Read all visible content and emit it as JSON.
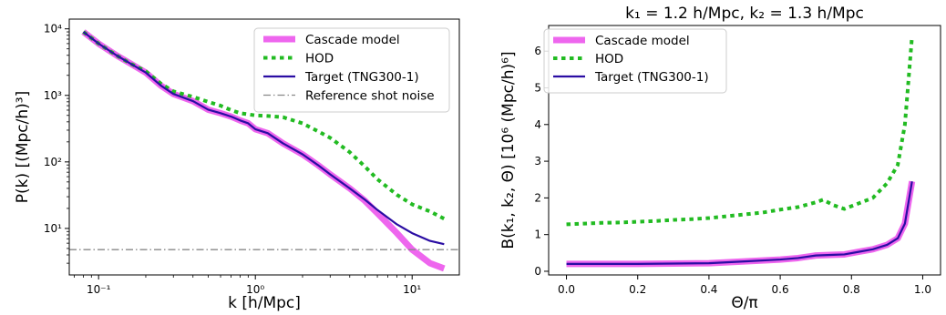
{
  "colors": {
    "cascade": "#ee66ee",
    "hod": "#22bb22",
    "target": "#2a0da3",
    "shot_noise": "#888888"
  },
  "chart_data": [
    {
      "type": "line",
      "title": "",
      "xlabel": "k [h/Mpc]",
      "ylabel": "P(k) [(Mpc/h)³]",
      "xscale": "log",
      "yscale": "log",
      "xlim": [
        0.065,
        20
      ],
      "ylim": [
        2.0,
        14000
      ],
      "x_ticks": [
        {
          "value": 0.1,
          "label": "10⁻¹"
        },
        {
          "value": 1,
          "label": "10⁰"
        },
        {
          "value": 10,
          "label": "10¹"
        }
      ],
      "y_ticks": [
        {
          "value": 10,
          "label": "10¹"
        },
        {
          "value": 100,
          "label": "10²"
        },
        {
          "value": 1000,
          "label": "10³"
        },
        {
          "value": 10000,
          "label": "10⁴"
        }
      ],
      "legend_position": "top-right",
      "grid": false,
      "series": [
        {
          "name": "Cascade model",
          "style": "thick",
          "color_key": "cascade",
          "x": [
            0.08,
            0.1,
            0.13,
            0.16,
            0.2,
            0.25,
            0.3,
            0.4,
            0.5,
            0.6,
            0.7,
            0.8,
            0.9,
            1.0,
            1.2,
            1.5,
            2.0,
            2.5,
            3.0,
            4.0,
            5.0,
            6.0,
            8.0,
            10.0,
            13.0,
            16.0
          ],
          "y": [
            9000,
            6000,
            4000,
            3000,
            2200,
            1400,
            1050,
            820,
            610,
            540,
            480,
            420,
            380,
            310,
            270,
            190,
            130,
            90,
            65,
            40,
            26,
            17,
            8.5,
            4.8,
            3.0,
            2.5
          ]
        },
        {
          "name": "HOD",
          "style": "dotted",
          "color_key": "hod",
          "x": [
            0.08,
            0.1,
            0.13,
            0.16,
            0.2,
            0.25,
            0.3,
            0.4,
            0.5,
            0.6,
            0.7,
            0.8,
            1.0,
            1.2,
            1.5,
            2.0,
            2.5,
            3.0,
            4.0,
            5.0,
            6.0,
            8.0,
            10.0,
            13.0,
            16.0
          ],
          "y": [
            9000,
            6000,
            4000,
            3000,
            2300,
            1500,
            1150,
            950,
            800,
            700,
            600,
            540,
            500,
            490,
            470,
            380,
            290,
            230,
            140,
            85,
            55,
            32,
            23,
            18,
            14
          ]
        },
        {
          "name": "Target (TNG300-1)",
          "style": "solid",
          "color_key": "target",
          "x": [
            0.08,
            0.1,
            0.13,
            0.16,
            0.2,
            0.25,
            0.3,
            0.4,
            0.5,
            0.6,
            0.7,
            0.8,
            0.9,
            1.0,
            1.2,
            1.5,
            2.0,
            2.5,
            3.0,
            4.0,
            5.0,
            6.0,
            8.0,
            10.0,
            13.0,
            16.0
          ],
          "y": [
            9000,
            6000,
            4000,
            3000,
            2200,
            1400,
            1050,
            820,
            610,
            540,
            480,
            420,
            380,
            310,
            270,
            190,
            130,
            90,
            65,
            40,
            27,
            19,
            11.5,
            8.5,
            6.5,
            5.8
          ]
        },
        {
          "name": "Reference shot noise",
          "style": "dashdot",
          "color_key": "shot_noise",
          "x": [
            0.065,
            20
          ],
          "y": [
            4.8,
            4.8
          ]
        }
      ]
    },
    {
      "type": "line",
      "title": "k₁ = 1.2 h/Mpc, k₂ = 1.3 h/Mpc",
      "xlabel": "Θ/π",
      "ylabel": "B(k₁, k₂, Θ) [10⁶ (Mpc/h)⁶]",
      "xscale": "linear",
      "yscale": "linear",
      "xlim": [
        -0.05,
        1.05
      ],
      "ylim": [
        -0.1,
        6.7
      ],
      "x_ticks": [
        {
          "value": 0,
          "label": "0.0"
        },
        {
          "value": 0.2,
          "label": "0.2"
        },
        {
          "value": 0.4,
          "label": "0.4"
        },
        {
          "value": 0.6,
          "label": "0.6"
        },
        {
          "value": 0.8,
          "label": "0.8"
        },
        {
          "value": 1.0,
          "label": "1.0"
        }
      ],
      "y_ticks": [
        {
          "value": 0,
          "label": "0"
        },
        {
          "value": 1,
          "label": "1"
        },
        {
          "value": 2,
          "label": "2"
        },
        {
          "value": 3,
          "label": "3"
        },
        {
          "value": 4,
          "label": "4"
        },
        {
          "value": 5,
          "label": "5"
        },
        {
          "value": 6,
          "label": "6"
        }
      ],
      "legend_position": "top-left",
      "grid": false,
      "series": [
        {
          "name": "Cascade model",
          "style": "thick",
          "color_key": "cascade",
          "x": [
            0.0,
            0.1,
            0.2,
            0.3,
            0.4,
            0.5,
            0.6,
            0.65,
            0.7,
            0.75,
            0.78,
            0.82,
            0.86,
            0.9,
            0.93,
            0.95,
            0.97
          ],
          "y": [
            0.2,
            0.2,
            0.2,
            0.21,
            0.22,
            0.27,
            0.32,
            0.36,
            0.43,
            0.45,
            0.46,
            0.53,
            0.6,
            0.72,
            0.9,
            1.3,
            2.45
          ]
        },
        {
          "name": "HOD",
          "style": "dotted",
          "color_key": "hod",
          "x": [
            0.0,
            0.05,
            0.1,
            0.15,
            0.2,
            0.25,
            0.3,
            0.35,
            0.4,
            0.45,
            0.5,
            0.55,
            0.6,
            0.65,
            0.7,
            0.72,
            0.75,
            0.78,
            0.82,
            0.86,
            0.9,
            0.93,
            0.95,
            0.97
          ],
          "y": [
            1.28,
            1.3,
            1.32,
            1.33,
            1.35,
            1.37,
            1.4,
            1.42,
            1.45,
            1.5,
            1.55,
            1.6,
            1.68,
            1.75,
            1.88,
            1.95,
            1.8,
            1.7,
            1.85,
            2.0,
            2.4,
            2.9,
            4.0,
            6.4
          ]
        },
        {
          "name": "Target (TNG300-1)",
          "style": "solid",
          "color_key": "target",
          "x": [
            0.0,
            0.1,
            0.2,
            0.3,
            0.4,
            0.5,
            0.6,
            0.65,
            0.7,
            0.75,
            0.78,
            0.82,
            0.86,
            0.9,
            0.93,
            0.95,
            0.97
          ],
          "y": [
            0.2,
            0.2,
            0.2,
            0.21,
            0.22,
            0.27,
            0.32,
            0.36,
            0.43,
            0.45,
            0.46,
            0.53,
            0.6,
            0.72,
            0.9,
            1.3,
            2.45
          ]
        }
      ]
    }
  ]
}
